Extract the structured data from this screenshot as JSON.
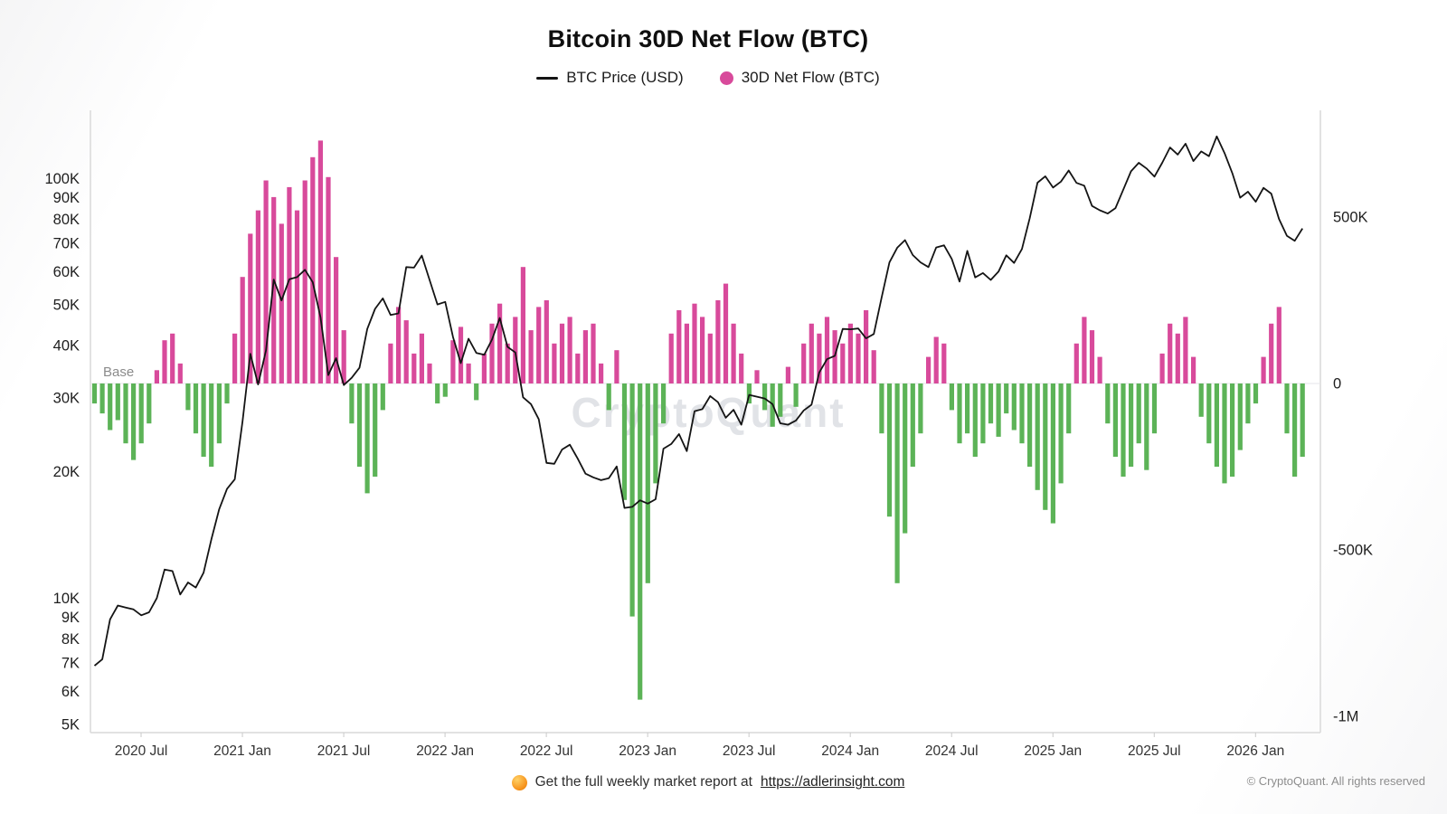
{
  "page": {
    "title": "Bitcoin 30D Net Flow (BTC)",
    "watermark": "CryptoQuant",
    "footer": {
      "report_text": "Get the full weekly market report at",
      "report_link": "https://adlerinsight.com",
      "copyright": "© CryptoQuant. All rights reserved"
    }
  },
  "chart_data": {
    "type": "mixed",
    "title": "Bitcoin 30D Net Flow (BTC)",
    "x_start": 2020.27,
    "x_step": 0.038462,
    "x_ticks": [
      2020.5,
      2021.0,
      2021.5,
      2022.0,
      2022.5,
      2023.0,
      2023.5,
      2024.0,
      2024.5,
      2025.0,
      2025.5,
      2026.0
    ],
    "x_tick_labels": [
      "2020 Jul",
      "2021 Jan",
      "2021 Jul",
      "2022 Jan",
      "2022 Jul",
      "2023 Jan",
      "2023 Jul",
      "2024 Jan",
      "2024 Jul",
      "2025 Jan",
      "2025 Jul",
      "2026 Jan"
    ],
    "base_label": "Base",
    "left_axis": {
      "scale": "log",
      "range": [
        5000,
        130000
      ],
      "ticks": [
        100000,
        90000,
        80000,
        70000,
        60000,
        50000,
        40000,
        30000,
        20000,
        10000,
        9000,
        8000,
        7000,
        6000,
        5000
      ],
      "tick_labels": [
        "100K",
        "90K",
        "80K",
        "70K",
        "60K",
        "50K",
        "40K",
        "30K",
        "20K",
        "10K",
        "9K",
        "8K",
        "7K",
        "6K",
        "5K"
      ]
    },
    "right_axis": {
      "scale": "linear",
      "range": [
        -1050000,
        750000
      ],
      "ticks": [
        500000,
        0,
        -500000,
        -1000000
      ],
      "tick_labels": [
        "500K",
        "0",
        "-500K",
        "-1M"
      ]
    },
    "legend": [
      {
        "label": "BTC Price (USD)",
        "swatch": "line",
        "color": "#141414"
      },
      {
        "label": "30D Net Flow (BTC)",
        "swatch": "dot",
        "color": "#d84a9b"
      }
    ],
    "series": [
      {
        "name": "BTC Price (USD)",
        "type": "line",
        "axis": "left",
        "color": "#141414",
        "values": [
          6900,
          7150,
          8900,
          9600,
          9500,
          9400,
          9100,
          9250,
          10000,
          11700,
          11600,
          10200,
          10900,
          10600,
          11500,
          13800,
          16300,
          18200,
          19200,
          26400,
          38200,
          32300,
          38900,
          57400,
          51200,
          57500,
          58200,
          60600,
          56600,
          46700,
          34000,
          37300,
          32200,
          33500,
          35400,
          43800,
          48900,
          51800,
          47300,
          47700,
          61500,
          61300,
          65500,
          57300,
          50100,
          50800,
          41900,
          36300,
          41500,
          38400,
          38000,
          41300,
          46500,
          39700,
          38500,
          30100,
          29000,
          26700,
          21000,
          20900,
          22600,
          23200,
          21500,
          19800,
          19400,
          19100,
          19300,
          20600,
          16400,
          16500,
          17100,
          16800,
          17200,
          22700,
          23300,
          24600,
          22400,
          27900,
          28200,
          30300,
          29300,
          26900,
          28100,
          25900,
          30500,
          30200,
          29900,
          29000,
          26100,
          25900,
          26500,
          28000,
          28900,
          34500,
          37100,
          37800,
          43800,
          43700,
          43900,
          41600,
          42600,
          52100,
          63100,
          68400,
          71300,
          65700,
          63100,
          61500,
          68500,
          69300,
          64300,
          56800,
          67200,
          58100,
          59500,
          57300,
          60000,
          65600,
          62900,
          67900,
          80400,
          97700,
          101200,
          95100,
          98300,
          104500,
          97600,
          96100,
          86000,
          84000,
          82500,
          85000,
          94000,
          104000,
          109000,
          105600,
          101000,
          109000,
          118500,
          114000,
          121000,
          110000,
          116000,
          113000,
          126000,
          115000,
          103000,
          90000,
          93000,
          88000,
          95000,
          92000,
          80000,
          73000,
          71000,
          76000
        ]
      },
      {
        "name": "30D Net Flow (BTC)",
        "type": "bar",
        "axis": "right",
        "positive_color": "#d84a9b",
        "negative_color": "#5cb357",
        "values": [
          -60000,
          -90000,
          -140000,
          -110000,
          -180000,
          -230000,
          -180000,
          -120000,
          40000,
          130000,
          150000,
          60000,
          -80000,
          -150000,
          -220000,
          -250000,
          -180000,
          -60000,
          150000,
          320000,
          450000,
          520000,
          610000,
          560000,
          480000,
          590000,
          520000,
          610000,
          680000,
          730000,
          620000,
          380000,
          160000,
          -120000,
          -250000,
          -330000,
          -280000,
          -80000,
          120000,
          230000,
          190000,
          90000,
          150000,
          60000,
          -60000,
          -40000,
          130000,
          170000,
          60000,
          -50000,
          90000,
          180000,
          240000,
          120000,
          200000,
          350000,
          160000,
          230000,
          250000,
          120000,
          180000,
          200000,
          90000,
          160000,
          180000,
          60000,
          -80000,
          100000,
          -350000,
          -700000,
          -950000,
          -600000,
          -300000,
          -120000,
          150000,
          220000,
          180000,
          240000,
          200000,
          150000,
          250000,
          300000,
          180000,
          90000,
          -60000,
          40000,
          -80000,
          -130000,
          -100000,
          50000,
          -70000,
          120000,
          180000,
          150000,
          200000,
          160000,
          120000,
          180000,
          150000,
          220000,
          100000,
          -150000,
          -400000,
          -600000,
          -450000,
          -250000,
          -150000,
          80000,
          140000,
          120000,
          -80000,
          -180000,
          -150000,
          -220000,
          -180000,
          -120000,
          -160000,
          -90000,
          -140000,
          -180000,
          -250000,
          -320000,
          -380000,
          -420000,
          -300000,
          -150000,
          120000,
          200000,
          160000,
          80000,
          -120000,
          -220000,
          -280000,
          -250000,
          -180000,
          -260000,
          -150000,
          90000,
          180000,
          150000,
          200000,
          80000,
          -100000,
          -180000,
          -250000,
          -300000,
          -280000,
          -200000,
          -120000,
          -60000,
          80000,
          180000,
          230000,
          -150000,
          -280000,
          -220000
        ]
      }
    ]
  }
}
